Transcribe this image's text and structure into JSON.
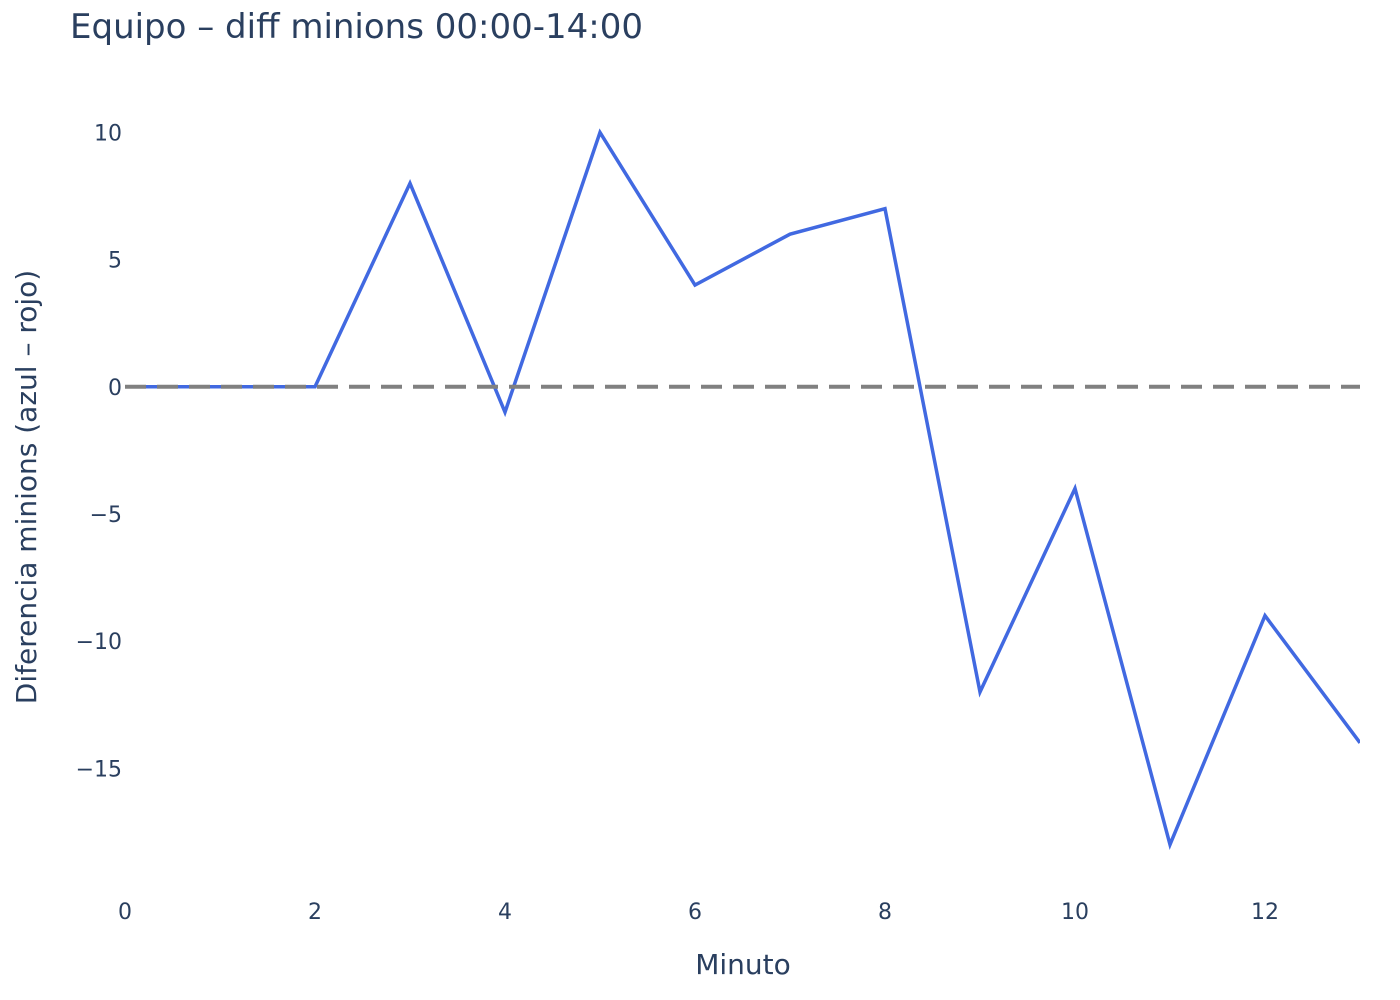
{
  "chart_data": {
    "type": "line",
    "title": "Equipo – diff minions 00:00-14:00",
    "xlabel": "Minuto",
    "ylabel": "Diferencia minions (azul – rojo)",
    "x": [
      0,
      1,
      2,
      3,
      4,
      5,
      6,
      7,
      8,
      9,
      10,
      11,
      12,
      13
    ],
    "series": [
      {
        "values": [
          0,
          0,
          0,
          8,
          -1,
          10,
          4,
          6,
          7,
          -12,
          -4,
          -18,
          -9,
          -14
        ],
        "color": "#4169e1"
      }
    ],
    "reference_line": {
      "y": 0,
      "style": "dashed",
      "color": "#808080"
    },
    "xlim": [
      0,
      13
    ],
    "ylim": [
      -19,
      11
    ],
    "xticks": [
      0,
      2,
      4,
      6,
      8,
      10,
      12
    ],
    "xtick_labels": [
      "0",
      "2",
      "4",
      "6",
      "8",
      "10",
      "12"
    ],
    "yticks": [
      10,
      5,
      0,
      -5,
      -10,
      -15
    ],
    "ytick_labels": [
      "10",
      "5",
      "0",
      "−5",
      "−10",
      "−15"
    ],
    "grid": false,
    "legend": "none"
  }
}
